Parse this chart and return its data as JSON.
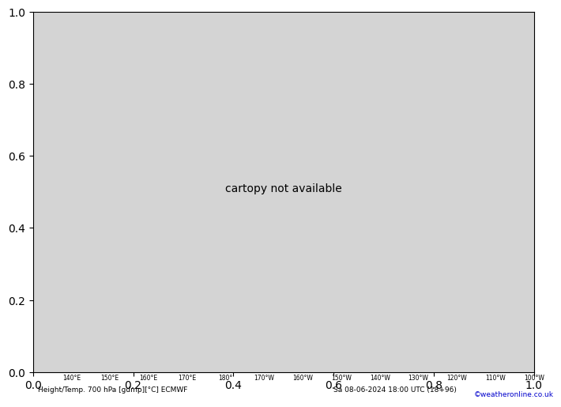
{
  "title_left": "Height/Temp. 700 hPa [gdmp][°C] ECMWF",
  "title_right": "Sa 08-06-2024 18:00 UTC (18+96)",
  "credit": "©weatheronline.co.uk",
  "bg_color": "#d4d4d4",
  "land_color": "#c8f0b4",
  "ocean_color": "#d4d4d4",
  "coast_color": "#888888",
  "grid_color": "#aaaaaa",
  "black": "#000000",
  "red_dashed": "#ee0000",
  "pink": "#ee00aa",
  "orange_dashed": "#dd8800",
  "bottom_bar_color": "#d4d4d4",
  "lon_min": 130,
  "lon_max": 260,
  "lat_min": 15,
  "lat_max": 72,
  "grid_lons": [
    140,
    150,
    160,
    170,
    180,
    190,
    200,
    210,
    220,
    230,
    240,
    250,
    260
  ],
  "grid_lats": [
    20,
    30,
    40,
    50,
    60,
    70
  ],
  "lon_labels": [
    "140°E",
    "150°E",
    "160°E",
    "170°E",
    "180°",
    "170°W",
    "160°W",
    "150°W",
    "140°W",
    "130°W",
    "120°W",
    "110°W",
    "100°W"
  ],
  "lon_label_vals": [
    140,
    150,
    160,
    170,
    180,
    190,
    200,
    210,
    220,
    230,
    240,
    250,
    260
  ]
}
